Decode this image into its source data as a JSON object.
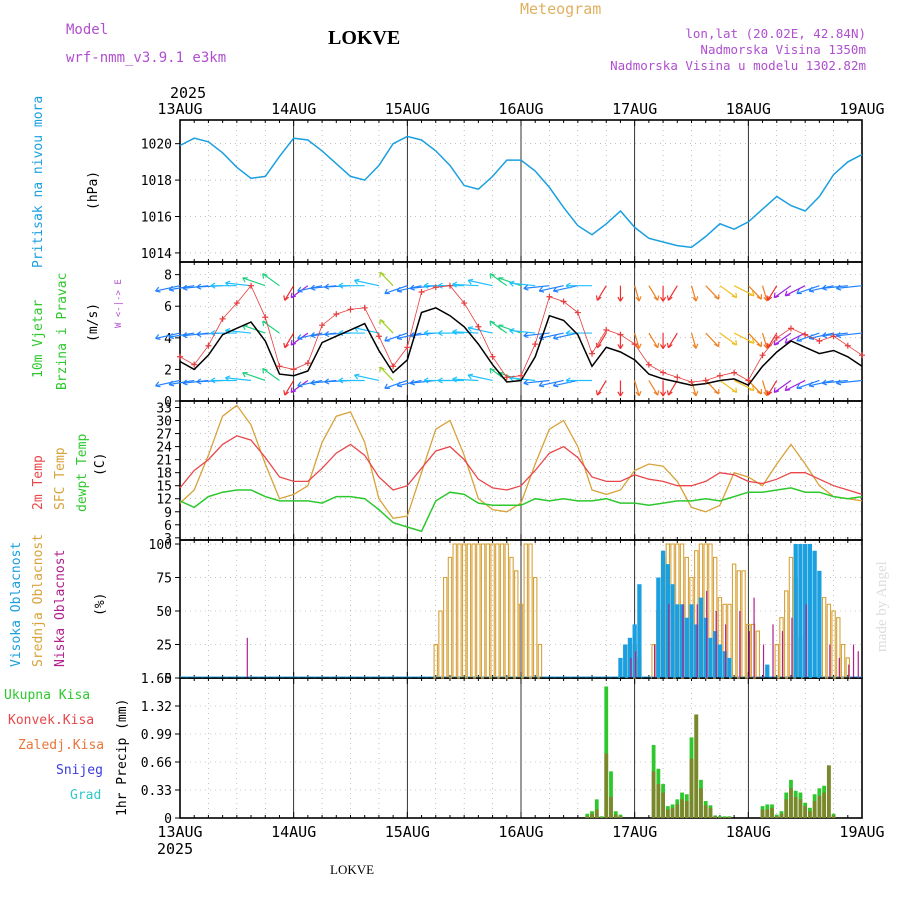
{
  "header": {
    "model_label": "Model",
    "model_name": "wrf-nmm_v3.9.1  e3km",
    "station": "LOKVE",
    "title": "Meteogram",
    "lonlat": "lon,lat (20.02E, 42.84N)",
    "elevation": "Nadmorska Visina 1350m",
    "model_elevation": "Nadmorska Visina u modelu 1302.82m",
    "footer_station": "LOKVE",
    "watermark": "made by Angel"
  },
  "colors": {
    "pressure": "#1a9fe0",
    "wind_speed": "#000000",
    "gust": "#e63c3c",
    "t2m": "#e8474a",
    "sfc": "#d8a23a",
    "dewpt": "#2ec82e",
    "high_cloud": "#1a9fe0",
    "mid_cloud": "#d8a23a",
    "low_cloud": "#b0208e",
    "total_precip": "#2ec82e",
    "conv_precip": "#e8474a",
    "frz_precip": "#e8763a",
    "snow": "#3a3ae0",
    "graupel": "#2ec8c8",
    "purple_text": "#b04fd0"
  },
  "chart_data": {
    "type": "meteogram",
    "year": "2025",
    "x_ticks": [
      "13AUG",
      "14AUG",
      "15AUG",
      "16AUG",
      "17AUG",
      "18AUG",
      "19AUG"
    ],
    "x_range_hours": [
      0,
      144
    ],
    "panels": [
      {
        "id": "pressure",
        "type": "line",
        "title": "Pritisak na nivou mora",
        "ylabel": "(hPa)",
        "ylim": [
          1013.5,
          1021.3
        ],
        "yticks": [
          1014,
          1016,
          1018,
          1020
        ],
        "x_step_hours": 3,
        "values": [
          1019.9,
          1020.3,
          1020.1,
          1019.5,
          1018.7,
          1018.1,
          1018.2,
          1019.3,
          1020.3,
          1020.2,
          1019.6,
          1018.9,
          1018.2,
          1018.0,
          1018.8,
          1020.0,
          1020.4,
          1020.2,
          1019.6,
          1018.8,
          1017.7,
          1017.5,
          1018.2,
          1019.1,
          1019.1,
          1018.5,
          1017.6,
          1016.5,
          1015.5,
          1015.0,
          1015.6,
          1016.3,
          1015.4,
          1014.8,
          1014.6,
          1014.4,
          1014.3,
          1014.9,
          1015.6,
          1015.3,
          1015.7,
          1016.4,
          1017.1,
          1016.6,
          1016.3,
          1017.1,
          1018.3,
          1019.0,
          1019.4
        ]
      },
      {
        "id": "wind",
        "type": "line",
        "title": "10m Vjetar",
        "title2": "Brzina i Pravac",
        "ylabel": "(m/s)",
        "compass": "W <-|-> E",
        "ylim": [
          0,
          8.8
        ],
        "yticks": [
          0,
          2,
          4,
          6,
          8
        ],
        "x_step_hours": 3,
        "speed": [
          2.5,
          2.0,
          2.9,
          4.2,
          4.6,
          5.0,
          3.8,
          1.7,
          1.6,
          1.9,
          3.7,
          4.1,
          4.5,
          4.9,
          3.2,
          1.8,
          2.6,
          5.6,
          5.9,
          5.4,
          4.7,
          3.6,
          2.3,
          1.2,
          1.3,
          2.8,
          5.4,
          5.1,
          4.2,
          2.2,
          3.4,
          3.1,
          2.6,
          1.7,
          1.4,
          1.2,
          1.0,
          1.1,
          1.3,
          1.4,
          1.0,
          2.2,
          3.1,
          3.8,
          3.4,
          3.0,
          3.2,
          2.8,
          2.2
        ],
        "gust": [
          2.8,
          2.3,
          3.5,
          5.2,
          6.2,
          7.3,
          5.3,
          2.2,
          2.0,
          2.4,
          4.8,
          5.5,
          5.8,
          5.9,
          4.1,
          2.2,
          3.4,
          6.9,
          7.2,
          7.3,
          6.2,
          4.7,
          2.8,
          1.5,
          1.6,
          3.6,
          6.6,
          6.3,
          5.6,
          3.0,
          4.5,
          4.2,
          3.6,
          2.3,
          1.8,
          1.5,
          1.2,
          1.3,
          1.6,
          1.8,
          1.3,
          2.9,
          4.0,
          4.6,
          4.2,
          3.8,
          4.1,
          3.5,
          2.9
        ],
        "barb_rows_ms": [
          7.3,
          4.3,
          1.3
        ],
        "barb_direction_deg": [
          250,
          255,
          260,
          265,
          270,
          280,
          300,
          320,
          200,
          220,
          250,
          260,
          265,
          270,
          290,
          330,
          240,
          250,
          260,
          270,
          270,
          275,
          290,
          320,
          300,
          280,
          260,
          250,
          250,
          270,
          200,
          180,
          170,
          160,
          180,
          200,
          170,
          150,
          140,
          130,
          150,
          170,
          200,
          220,
          230,
          240,
          250,
          260,
          260
        ]
      },
      {
        "id": "temperature",
        "type": "line",
        "title": "2m Temp",
        "title2": "SFC Temp",
        "title3": "dewpt Temp",
        "ylabel": "(C)",
        "ylim": [
          2.5,
          34.5
        ],
        "yticks": [
          3,
          6,
          9,
          12,
          15,
          18,
          21,
          24,
          27,
          30,
          33
        ],
        "x_step_hours": 3,
        "t2m": [
          14.5,
          18.5,
          21.0,
          24.5,
          26.5,
          25.5,
          21.5,
          17.0,
          16.0,
          16.0,
          19.0,
          22.5,
          24.5,
          22.0,
          17.0,
          14.0,
          15.0,
          19.0,
          23.0,
          24.0,
          21.0,
          16.5,
          14.5,
          14.0,
          15.0,
          18.5,
          22.5,
          24.0,
          21.5,
          17.0,
          16.0,
          16.0,
          17.5,
          16.5,
          16.0,
          15.0,
          15.0,
          16.0,
          18.0,
          17.5,
          16.0,
          15.5,
          16.5,
          18.0,
          18.0,
          16.5,
          15.0,
          14.0,
          13.0
        ],
        "sfc": [
          11.0,
          14.0,
          22.0,
          31.0,
          33.5,
          29.0,
          20.0,
          12.0,
          13.0,
          15.0,
          25.0,
          31.0,
          32.0,
          25.0,
          12.0,
          7.5,
          8.0,
          18.0,
          28.0,
          30.0,
          22.0,
          12.0,
          9.5,
          9.0,
          11.0,
          20.0,
          28.0,
          30.0,
          24.0,
          14.0,
          13.0,
          14.0,
          18.5,
          20.0,
          19.5,
          16.0,
          10.0,
          9.0,
          10.5,
          18.0,
          17.0,
          15.0,
          20.0,
          24.5,
          20.0,
          15.0,
          12.5,
          12.0,
          11.5
        ],
        "dewpt": [
          11.5,
          10.0,
          12.5,
          13.5,
          14.0,
          14.0,
          12.5,
          11.5,
          11.5,
          11.5,
          11.0,
          12.5,
          12.5,
          12.0,
          9.5,
          6.5,
          5.5,
          4.5,
          11.5,
          13.5,
          13.0,
          11.0,
          10.5,
          10.5,
          10.5,
          12.0,
          11.5,
          12.0,
          11.5,
          11.5,
          12.0,
          11.0,
          11.0,
          10.5,
          11.0,
          11.5,
          11.5,
          12.0,
          11.5,
          12.5,
          13.5,
          13.5,
          14.0,
          14.5,
          13.5,
          13.5,
          12.5,
          12.0,
          12.5
        ]
      },
      {
        "id": "clouds",
        "type": "bar",
        "title": "Visoka Oblacnost",
        "title2": "Srednja Oblacnost",
        "title3": "Niska Oblacnost",
        "ylabel": "(%)",
        "ylim": [
          0,
          103
        ],
        "yticks": [
          0,
          25,
          50,
          75,
          100
        ],
        "x_step_hours": 1,
        "mid_hours": [
          54,
          55,
          56,
          57,
          58,
          59,
          60,
          61,
          62,
          63,
          64,
          65,
          66,
          67,
          68,
          69,
          70,
          71,
          72,
          73,
          74,
          75,
          76,
          95,
          96,
          97,
          100,
          101,
          102,
          103,
          104,
          105,
          106,
          107,
          108,
          109,
          110,
          111,
          112,
          113,
          114,
          115,
          116,
          117,
          118,
          119,
          120,
          121,
          122,
          126,
          127,
          128,
          129,
          130,
          131,
          136,
          137,
          138,
          139,
          140,
          141
        ],
        "mid_values": [
          25,
          50,
          75,
          90,
          100,
          100,
          100,
          100,
          100,
          100,
          100,
          100,
          100,
          100,
          100,
          100,
          90,
          80,
          55,
          100,
          100,
          75,
          25,
          25,
          25,
          15,
          25,
          50,
          90,
          100,
          100,
          100,
          100,
          90,
          75,
          95,
          100,
          100,
          100,
          90,
          60,
          55,
          55,
          85,
          80,
          80,
          40,
          40,
          35,
          25,
          45,
          65,
          90,
          75,
          30,
          60,
          55,
          50,
          45,
          25,
          15
        ],
        "high_hours": [
          93,
          94,
          95,
          96,
          97,
          101,
          102,
          103,
          104,
          105,
          106,
          107,
          108,
          109,
          110,
          111,
          112,
          113,
          114,
          115,
          116,
          124,
          130,
          131,
          132,
          133,
          134,
          135
        ],
        "high_values": [
          15,
          25,
          30,
          40,
          70,
          75,
          95,
          85,
          70,
          55,
          55,
          45,
          55,
          40,
          60,
          45,
          30,
          35,
          25,
          20,
          15,
          10,
          100,
          100,
          100,
          100,
          95,
          80
        ],
        "low_hours": [
          14,
          95,
          96,
          100,
          103,
          106,
          109,
          111,
          113,
          115,
          118,
          120,
          121,
          123,
          125,
          127,
          129,
          132,
          137,
          139,
          141,
          142,
          143
        ],
        "low_values": [
          30,
          15,
          20,
          25,
          55,
          55,
          55,
          65,
          50,
          40,
          50,
          35,
          60,
          25,
          40,
          35,
          45,
          55,
          25,
          15,
          10,
          25,
          20
        ]
      },
      {
        "id": "precip",
        "type": "bar",
        "title": "Ukupna  Kisa",
        "title2": "Konvek.Kisa",
        "title3": "Zaledj.Kisa",
        "title4": "Snijeg",
        "title5": "Grad",
        "ylabel": "1hr Precip (mm)",
        "ylim": [
          0,
          1.65
        ],
        "yticks": [
          "0",
          "0.33",
          "0.66",
          "0.99",
          "1.32",
          "1.65"
        ],
        "x_step_hours": 1,
        "hours": [
          86,
          87,
          88,
          89,
          90,
          91,
          92,
          93,
          100,
          101,
          102,
          103,
          104,
          105,
          106,
          107,
          108,
          109,
          110,
          111,
          112,
          113,
          114,
          115,
          116,
          123,
          124,
          125,
          126,
          127,
          128,
          129,
          130,
          131,
          132,
          133,
          134,
          135,
          136,
          137,
          138
        ],
        "total": [
          0.05,
          0.08,
          0.22,
          0.02,
          1.55,
          0.55,
          0.08,
          0.04,
          0.86,
          0.58,
          0.4,
          0.14,
          0.16,
          0.22,
          0.3,
          0.28,
          0.95,
          1.22,
          0.45,
          0.2,
          0.15,
          0.03,
          0.02,
          0.02,
          0.02,
          0.14,
          0.16,
          0.16,
          0.04,
          0.08,
          0.3,
          0.45,
          0.32,
          0.3,
          0.18,
          0.12,
          0.28,
          0.35,
          0.38,
          0.62,
          0.05
        ],
        "conv": [
          0.02,
          0.05,
          0.1,
          0.01,
          0.76,
          0.25,
          0.04,
          0.02,
          0.55,
          0.4,
          0.3,
          0.1,
          0.12,
          0.16,
          0.22,
          0.2,
          0.7,
          1.22,
          0.35,
          0.15,
          0.12,
          0.02,
          0.01,
          0.01,
          0.01,
          0.1,
          0.1,
          0.12,
          0.02,
          0.05,
          0.22,
          0.35,
          0.25,
          0.22,
          0.14,
          0.08,
          0.2,
          0.26,
          0.3,
          0.62,
          0.03
        ]
      }
    ]
  }
}
